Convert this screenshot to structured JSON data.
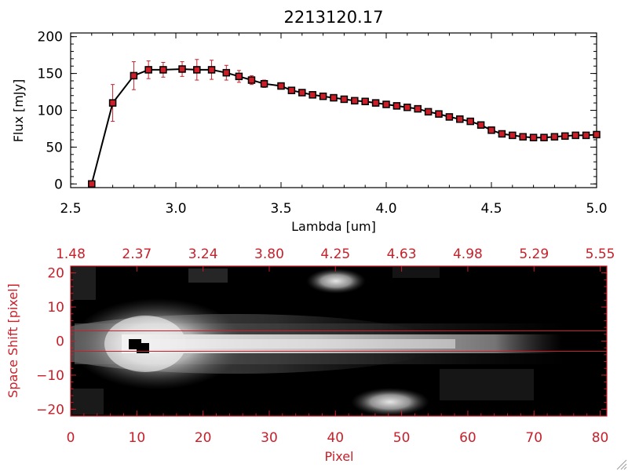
{
  "colors": {
    "axis_top": "#000000",
    "axis_bottom": "#c8202a",
    "error_bars": "#c8202a",
    "markers": "#cc1e28",
    "image_background": "#000000"
  },
  "chart_data": [
    {
      "type": "line",
      "title": "2213120.17",
      "xlabel": "Lambda [um]",
      "ylabel": "Flux [mJy]",
      "xlim": [
        2.5,
        5.0
      ],
      "ylim": [
        -5,
        205
      ],
      "xticks": [
        2.5,
        3.0,
        3.5,
        4.0,
        4.5,
        5.0
      ],
      "xtick_labels": [
        "2.5",
        "3.0",
        "3.5",
        "4.0",
        "4.5",
        "5.0"
      ],
      "yticks": [
        0,
        50,
        100,
        150,
        200
      ],
      "ytick_labels": [
        "0",
        "50",
        "100",
        "150",
        "200"
      ],
      "series": [
        {
          "x": [
            2.6,
            2.7,
            2.8,
            2.87,
            2.94,
            3.03,
            3.1,
            3.17,
            3.24,
            3.3,
            3.36,
            3.42,
            3.5,
            3.55,
            3.6,
            3.65,
            3.7,
            3.75,
            3.8,
            3.85,
            3.9,
            3.95,
            4.0,
            4.05,
            4.1,
            4.15,
            4.2,
            4.25,
            4.3,
            4.35,
            4.4,
            4.45,
            4.5,
            4.55,
            4.6,
            4.65,
            4.7,
            4.75,
            4.8,
            4.85,
            4.9,
            4.95,
            5.0
          ],
          "y": [
            0,
            110,
            147,
            155,
            155,
            156,
            155,
            155,
            151,
            146,
            141,
            136,
            133,
            127,
            124,
            121,
            119,
            117,
            115,
            113,
            112,
            110,
            108,
            106,
            104,
            102,
            98,
            95,
            91,
            88,
            85,
            80,
            73,
            68,
            66,
            64,
            63,
            63,
            64,
            65,
            66,
            66,
            67
          ],
          "yerr": [
            0,
            25,
            19,
            12,
            10,
            10,
            14,
            13,
            10,
            8,
            6,
            5,
            4,
            3,
            3,
            3,
            3,
            3,
            3,
            3,
            3,
            3,
            3,
            3,
            3,
            3,
            3,
            3,
            3,
            3,
            3,
            3,
            3,
            3,
            3,
            3,
            3,
            3,
            3,
            3,
            3,
            3,
            3
          ]
        }
      ]
    },
    {
      "type": "heatmap",
      "xlabel": "Pixel",
      "ylabel": "Space Shift [pixel]",
      "xlim": [
        0,
        81
      ],
      "ylim": [
        -22,
        22
      ],
      "xticks": [
        0,
        10,
        20,
        30,
        40,
        50,
        60,
        70,
        80
      ],
      "xtick_labels": [
        "0",
        "10",
        "20",
        "30",
        "40",
        "50",
        "60",
        "70",
        "80"
      ],
      "yticks": [
        -20,
        -10,
        0,
        10,
        20
      ],
      "ytick_labels": [
        "−20",
        "−10",
        "0",
        "10",
        "20"
      ],
      "top_ticks": [
        1.48,
        2.37,
        3.24,
        3.8,
        4.25,
        4.63,
        4.98,
        5.29,
        5.55
      ],
      "top_tick_labels": [
        "1.48",
        "2.37",
        "3.24",
        "3.80",
        "4.25",
        "4.63",
        "4.98",
        "5.29",
        "5.55"
      ],
      "extraction_window": [
        -3,
        3
      ]
    }
  ]
}
